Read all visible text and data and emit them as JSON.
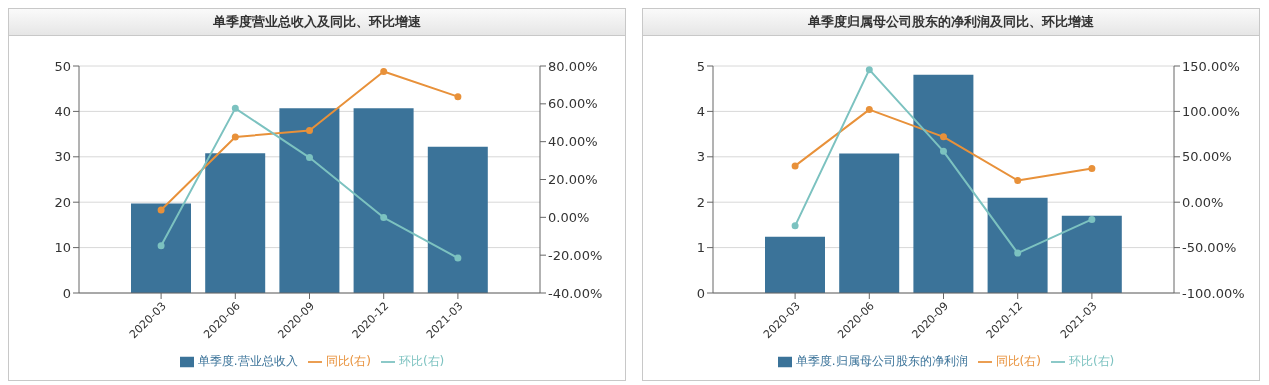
{
  "chart_data": [
    {
      "type": "bar",
      "title": "单季度营业总收入及同比、环比增速",
      "categories": [
        "2020-03",
        "2020-06",
        "2020-09",
        "2020-12",
        "2021-03"
      ],
      "series": [
        {
          "name": "单季度.营业总收入",
          "color": "#3b7399",
          "values": [
            19.7,
            30.8,
            40.7,
            40.7,
            32.2
          ]
        },
        {
          "name": "同比(右)",
          "type": "line",
          "axis": "y2",
          "color": "#e8913a",
          "values": [
            3.9,
            42.5,
            45.9,
            77.1,
            63.8
          ]
        },
        {
          "name": "环比(右)",
          "type": "line",
          "axis": "y2",
          "color": "#7cc2c0",
          "values": [
            -15.0,
            57.6,
            31.6,
            -0.1,
            -21.5
          ]
        }
      ],
      "ylim": [
        0,
        50
      ],
      "yticks": [
        0,
        10,
        20,
        30,
        40,
        50
      ],
      "y2lim": [
        -40,
        80
      ],
      "y2ticks": [
        {
          "value": -40,
          "label": "-40.00%"
        },
        {
          "value": -20,
          "label": "-20.00%"
        },
        {
          "value": 0,
          "label": "0.00%"
        },
        {
          "value": 20,
          "label": "20.00%"
        },
        {
          "value": 40,
          "label": "40.00%"
        },
        {
          "value": 60,
          "label": "60.00%"
        },
        {
          "value": 80,
          "label": "80.00%"
        }
      ],
      "grid": "y",
      "legend": "bottom",
      "marker": "circle"
    },
    {
      "type": "bar",
      "title": "单季度归属母公司股东的净利润及同比、环比增速",
      "categories": [
        "2020-03",
        "2020-06",
        "2020-09",
        "2020-12",
        "2021-03"
      ],
      "series": [
        {
          "name": "单季度.归属母公司股东的净利润",
          "color": "#3b7399",
          "values": [
            1.24,
            3.07,
            4.81,
            2.1,
            1.7
          ]
        },
        {
          "name": "同比(右)",
          "type": "line",
          "axis": "y2",
          "color": "#e8913a",
          "values": [
            40,
            102,
            72,
            24,
            37
          ]
        },
        {
          "name": "环比(右)",
          "type": "line",
          "axis": "y2",
          "color": "#7cc2c0",
          "values": [
            -26,
            146,
            56,
            -56,
            -19
          ]
        }
      ],
      "ylim": [
        0,
        5
      ],
      "yticks": [
        0,
        1,
        2,
        3,
        4,
        5
      ],
      "y2lim": [
        -100,
        150
      ],
      "y2ticks": [
        {
          "value": -100,
          "label": "-100.00%"
        },
        {
          "value": -50,
          "label": "-50.00%"
        },
        {
          "value": 0,
          "label": "0.00%"
        },
        {
          "value": 50,
          "label": "50.00%"
        },
        {
          "value": 100,
          "label": "100.00%"
        },
        {
          "value": 150,
          "label": "150.00%"
        }
      ],
      "grid": "y",
      "legend": "bottom",
      "marker": "circle"
    }
  ]
}
